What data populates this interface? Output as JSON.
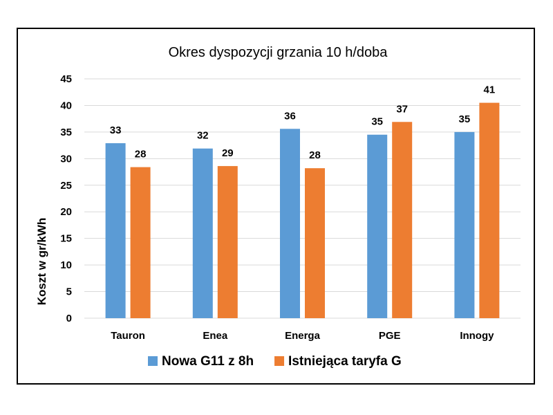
{
  "chart_data": {
    "type": "bar",
    "title": "Okres dyspozycji grzania 10 h/doba",
    "xlabel": "",
    "ylabel": "Koszt w gr/kWh",
    "ylim": [
      0,
      45
    ],
    "yticks": [
      0,
      5,
      10,
      15,
      20,
      25,
      30,
      35,
      40,
      45
    ],
    "grid": true,
    "legend_position": "bottom",
    "categories": [
      "Tauron",
      "Enea",
      "Energa",
      "PGE",
      "Innogy"
    ],
    "series": [
      {
        "name": "Nowa G11 z 8h",
        "color": "#5B9BD5",
        "values": [
          32.9,
          31.9,
          35.6,
          34.5,
          35.0
        ],
        "labels": [
          "33",
          "32",
          "36",
          "35",
          "35"
        ]
      },
      {
        "name": "Istniejąca taryfa G",
        "color": "#ED7D31",
        "values": [
          28.4,
          28.6,
          28.2,
          36.9,
          40.5
        ],
        "labels": [
          "28",
          "29",
          "28",
          "37",
          "41"
        ]
      }
    ]
  }
}
